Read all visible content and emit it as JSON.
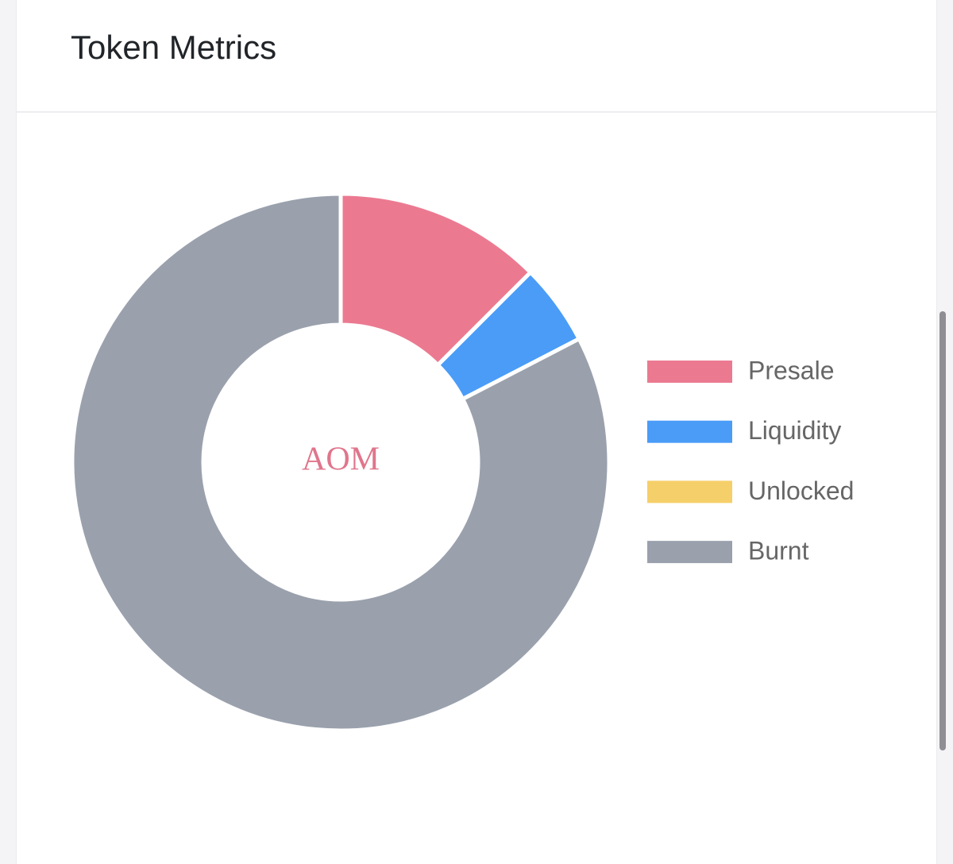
{
  "card": {
    "title": "Token Metrics"
  },
  "colors": {
    "Presale": "#eb7a91",
    "Liquidity": "#4a9cf7",
    "Unlocked": "#f5cf69",
    "Burnt": "#9aa1ad",
    "center_text": "#e0758c"
  },
  "chart_data": {
    "type": "pie",
    "subtype": "doughnut",
    "center_label": "AOM",
    "legend_position": "right",
    "categories": [
      "Presale",
      "Liquidity",
      "Unlocked",
      "Burnt"
    ],
    "values": [
      12.5,
      4.9,
      0,
      82.6
    ]
  }
}
